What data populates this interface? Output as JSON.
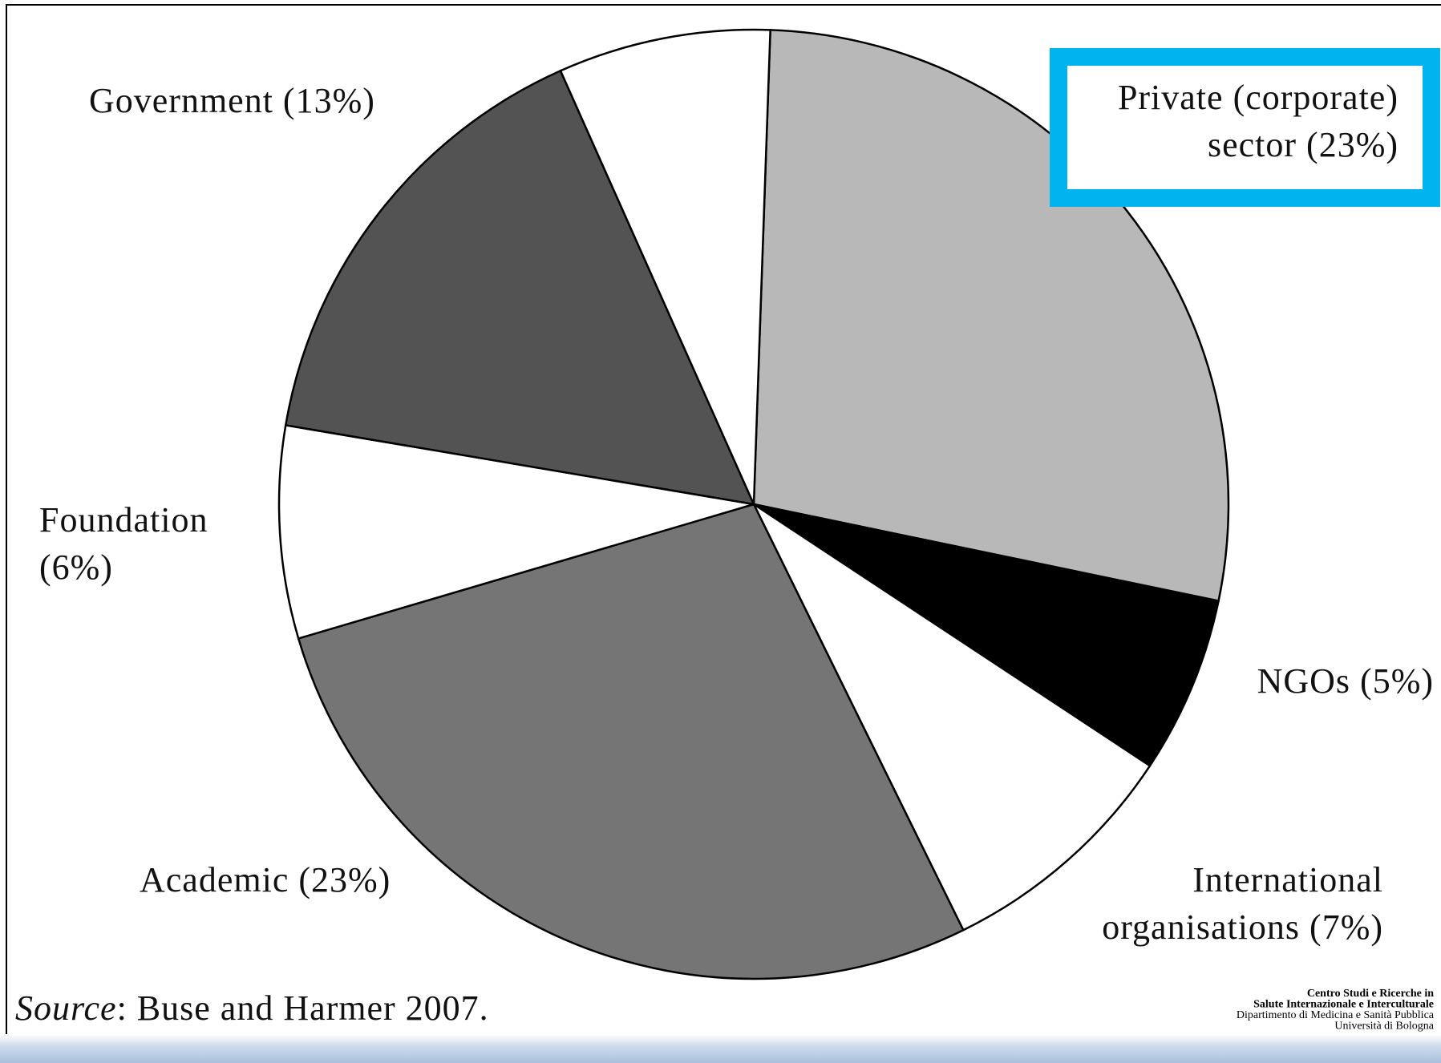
{
  "chart_data": {
    "type": "pie",
    "categories": [
      [
        "Private (corporate)",
        "sector (23%)"
      ],
      [
        "NGOs (5%)"
      ],
      [
        "International",
        "organisations (7%)"
      ],
      [
        "Academic (23%)"
      ],
      [
        "Foundation",
        "(6%)"
      ],
      [
        "Government (13%)"
      ],
      null
    ],
    "values": [
      23,
      5,
      7,
      23,
      6,
      13,
      6
    ],
    "colors": [
      "#b8b8b8",
      "#000000",
      "#ffffff",
      "#757575",
      "#ffffff",
      "#535353",
      "#ffffff"
    ],
    "source_label": "Source",
    "source_text": ": Buse and Harmer 2007.",
    "logo": [
      "Centro Studi e Ricerche in",
      "Salute Internazionale e Interculturale",
      "Dipartimento di Medicina e Sanità Pubblica",
      "Università di Bologna"
    ]
  }
}
